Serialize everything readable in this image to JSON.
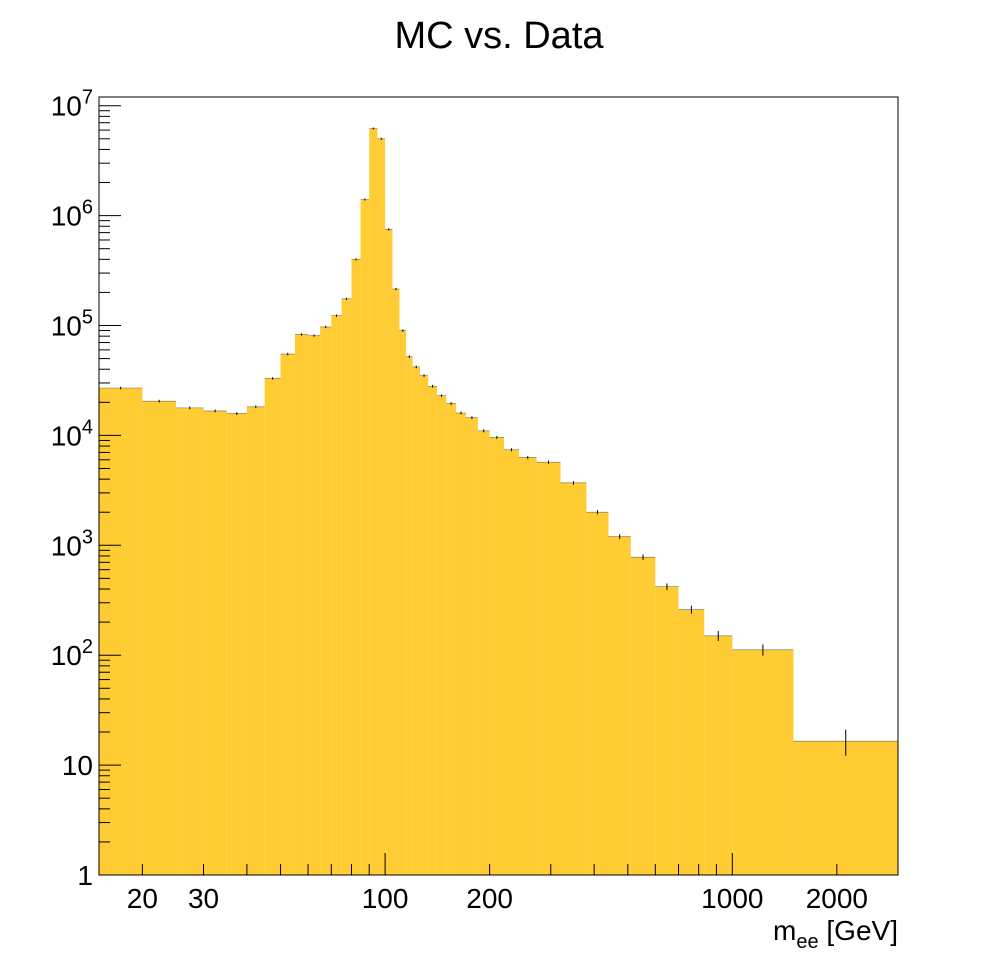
{
  "chart_data": {
    "type": "bar",
    "title": "MC vs. Data",
    "xlabel_main": "m",
    "xlabel_sub": "ee",
    "xlabel_unit": " [GeV]",
    "ylabel": "",
    "x_scale": "log",
    "y_scale": "log",
    "xlim": [
      15,
      3000
    ],
    "ylim": [
      1,
      12000000
    ],
    "fill_color": "#FFCC33",
    "edge_color": "#000000",
    "grid": false,
    "x_tick_labels": [
      {
        "value": 20,
        "label": "20"
      },
      {
        "value": 30,
        "label": "30"
      },
      {
        "value": 100,
        "label": "100"
      },
      {
        "value": 200,
        "label": "200"
      },
      {
        "value": 1000,
        "label": "1000"
      },
      {
        "value": 2000,
        "label": "2000"
      }
    ],
    "y_tick_labels": [
      {
        "value": 1,
        "base": "1",
        "exp": ""
      },
      {
        "value": 10,
        "base": "10",
        "exp": ""
      },
      {
        "value": 100,
        "base": "10",
        "exp": "2"
      },
      {
        "value": 1000,
        "base": "10",
        "exp": "3"
      },
      {
        "value": 10000,
        "base": "10",
        "exp": "4"
      },
      {
        "value": 100000,
        "base": "10",
        "exp": "5"
      },
      {
        "value": 1000000,
        "base": "10",
        "exp": "6"
      },
      {
        "value": 10000000,
        "base": "10",
        "exp": "7"
      }
    ],
    "bin_edges": [
      15,
      20,
      25,
      30,
      35,
      40,
      45,
      50,
      55,
      60,
      65,
      70,
      75,
      80,
      85,
      90,
      95,
      100,
      105,
      110,
      115,
      120,
      126,
      133,
      141,
      150,
      160,
      171,
      185,
      200,
      220,
      243,
      273,
      320,
      380,
      440,
      510,
      600,
      700,
      830,
      1000,
      1500,
      3000
    ],
    "values": [
      27000,
      20500,
      17800,
      16700,
      15800,
      18200,
      33000,
      55000,
      83000,
      81000,
      97000,
      123000,
      175000,
      400000,
      1400000,
      6200000,
      5000000,
      750000,
      215000,
      90000,
      52000,
      42000,
      35000,
      28000,
      23000,
      19500,
      16000,
      14500,
      11000,
      9600,
      7400,
      6300,
      5700,
      3700,
      2000,
      1200,
      780,
      420,
      260,
      150,
      112,
      16.5
    ]
  }
}
